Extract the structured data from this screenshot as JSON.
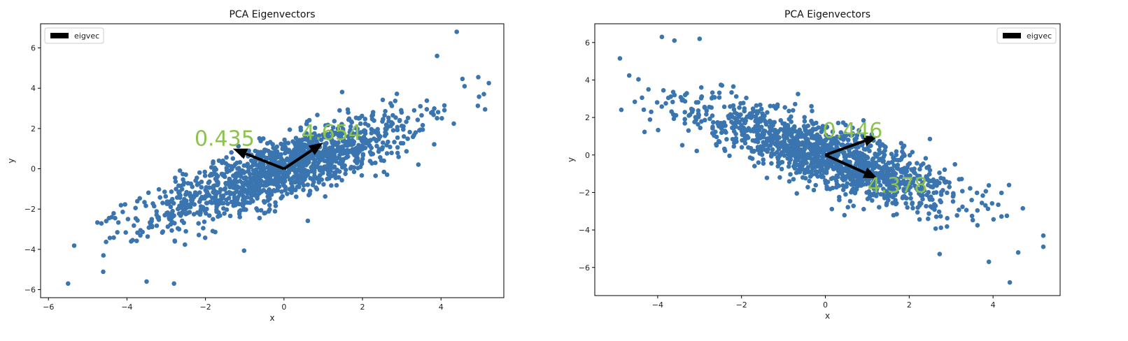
{
  "chart_data": [
    {
      "type": "scatter",
      "title": "PCA Eigenvectors",
      "xlabel": "x",
      "ylabel": "y",
      "xlim": [
        -6.2,
        5.6
      ],
      "ylim": [
        -6.4,
        7.2
      ],
      "xticks": [
        -6,
        -4,
        -2,
        0,
        2,
        4
      ],
      "yticks": [
        -6,
        -4,
        -2,
        0,
        2,
        4,
        6
      ],
      "grid": false,
      "legend": {
        "position": "upper-left",
        "entries": [
          "eigvec"
        ]
      },
      "point_color": "#3a75b0",
      "correlation": "positive",
      "cloud": {
        "cx": 0,
        "cy": 0,
        "major_dir": [
          0.8,
          0.6
        ],
        "major_sd": 2.1,
        "minor_sd": 0.63,
        "n": 1400
      },
      "outliers": [
        [
          -5.5,
          -5.7
        ],
        [
          4.4,
          6.8
        ],
        [
          4.95,
          4.55
        ],
        [
          -4.6,
          -4.3
        ],
        [
          -3.5,
          -5.6
        ],
        [
          -2.8,
          -5.7
        ],
        [
          3.9,
          5.6
        ],
        [
          4.6,
          4.1
        ]
      ],
      "eigenvectors": [
        {
          "value": 4.654,
          "label": "4.654",
          "end": [
            1.0,
            1.3
          ]
        },
        {
          "value": 0.435,
          "label": "0.435",
          "end": [
            -1.3,
            1.0
          ]
        }
      ],
      "annotation_color": "#8cc24f",
      "arrow_color": "#000000"
    },
    {
      "type": "scatter",
      "title": "PCA Eigenvectors",
      "xlabel": "x",
      "ylabel": "y",
      "xlim": [
        -5.5,
        5.6
      ],
      "ylim": [
        -7.5,
        7.0
      ],
      "xticks": [
        -4,
        -2,
        0,
        2,
        4
      ],
      "yticks": [
        -6,
        -4,
        -2,
        0,
        2,
        4,
        6
      ],
      "grid": false,
      "legend": {
        "position": "upper-right",
        "entries": [
          "eigvec"
        ]
      },
      "point_color": "#3a75b0",
      "correlation": "negative",
      "cloud": {
        "cx": 0,
        "cy": 0,
        "major_dir": [
          0.75,
          -0.66
        ],
        "major_sd": 2.05,
        "minor_sd": 0.65,
        "n": 1400
      },
      "outliers": [
        [
          -4.9,
          5.15
        ],
        [
          -3.9,
          6.3
        ],
        [
          -3.6,
          6.1
        ],
        [
          -3.0,
          6.2
        ],
        [
          4.4,
          -6.8
        ],
        [
          5.2,
          -4.9
        ],
        [
          5.2,
          -4.3
        ],
        [
          4.6,
          -5.2
        ],
        [
          3.9,
          -5.7
        ]
      ],
      "eigenvectors": [
        {
          "value": 0.446,
          "label": "0.446",
          "end": [
            1.25,
            1.0
          ]
        },
        {
          "value": 4.378,
          "label": "4.378",
          "end": [
            1.25,
            -1.25
          ]
        }
      ],
      "annotation_color": "#8cc24f",
      "arrow_color": "#000000"
    }
  ]
}
